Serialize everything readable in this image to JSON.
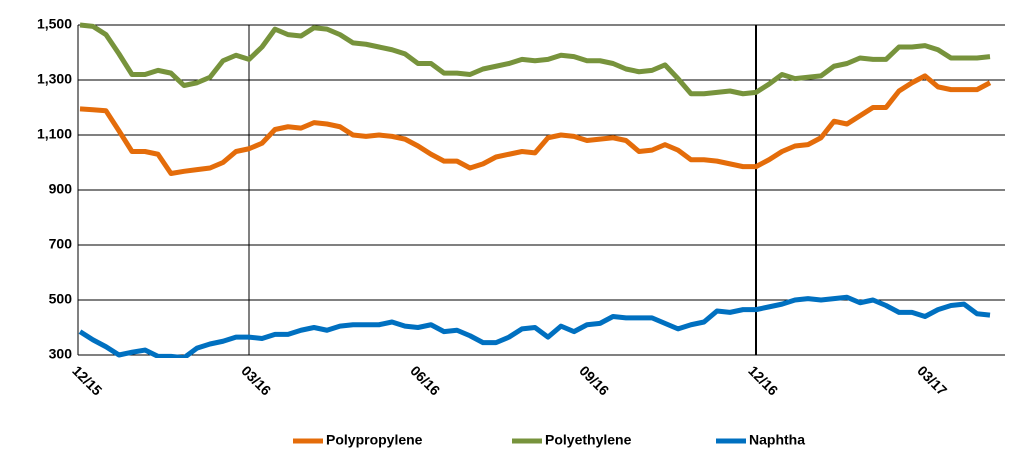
{
  "chart_data": {
    "type": "line",
    "categories": [
      "12/15",
      null,
      null,
      null,
      null,
      null,
      null,
      null,
      null,
      null,
      null,
      null,
      null,
      "03/16",
      null,
      null,
      null,
      null,
      null,
      null,
      null,
      null,
      null,
      null,
      null,
      null,
      "06/16",
      null,
      null,
      null,
      null,
      null,
      null,
      null,
      null,
      null,
      null,
      null,
      null,
      "09/16",
      null,
      null,
      null,
      null,
      null,
      null,
      null,
      null,
      null,
      null,
      null,
      null,
      "12/16",
      null,
      null,
      null,
      null,
      null,
      null,
      null,
      null,
      null,
      null,
      null,
      null,
      "03/17",
      null,
      null,
      null,
      null,
      null
    ],
    "series": [
      {
        "name": "Polypropylene",
        "color": "#e46c0a",
        "values": [
          1195,
          1192,
          1188,
          1115,
          1040,
          1040,
          1030,
          960,
          968,
          974,
          980,
          1000,
          1040,
          1050,
          1070,
          1120,
          1130,
          1125,
          1145,
          1140,
          1130,
          1100,
          1095,
          1100,
          1095,
          1085,
          1060,
          1030,
          1005,
          1005,
          980,
          995,
          1020,
          1030,
          1040,
          1035,
          1090,
          1100,
          1095,
          1080,
          1085,
          1090,
          1080,
          1040,
          1045,
          1065,
          1045,
          1010,
          1010,
          1005,
          995,
          985,
          985,
          1010,
          1040,
          1060,
          1065,
          1090,
          1150,
          1140,
          1170,
          1200,
          1200,
          1260,
          1290,
          1315,
          1275,
          1265,
          1265,
          1265,
          1290
        ]
      },
      {
        "name": "Polyethylene",
        "color": "#77933c",
        "values": [
          1500,
          1495,
          1465,
          1395,
          1320,
          1320,
          1335,
          1325,
          1280,
          1290,
          1310,
          1370,
          1390,
          1375,
          1420,
          1485,
          1465,
          1460,
          1490,
          1485,
          1465,
          1435,
          1430,
          1420,
          1410,
          1395,
          1360,
          1360,
          1325,
          1325,
          1320,
          1340,
          1350,
          1360,
          1375,
          1370,
          1375,
          1390,
          1385,
          1370,
          1370,
          1360,
          1340,
          1330,
          1335,
          1355,
          1305,
          1250,
          1250,
          1255,
          1260,
          1250,
          1255,
          1285,
          1320,
          1305,
          1310,
          1315,
          1350,
          1360,
          1380,
          1375,
          1375,
          1420,
          1420,
          1425,
          1410,
          1380,
          1380,
          1380,
          1385
        ]
      },
      {
        "name": "Naphtha",
        "color": "#0070c0",
        "values": [
          385,
          355,
          330,
          300,
          310,
          318,
          295,
          295,
          290,
          325,
          340,
          350,
          365,
          365,
          360,
          375,
          375,
          390,
          400,
          390,
          405,
          410,
          410,
          410,
          420,
          405,
          400,
          410,
          385,
          390,
          370,
          345,
          345,
          365,
          395,
          400,
          365,
          405,
          385,
          410,
          415,
          440,
          435,
          435,
          435,
          415,
          395,
          410,
          420,
          460,
          455,
          465,
          465,
          475,
          485,
          500,
          505,
          500,
          505,
          510,
          490,
          500,
          480,
          455,
          455,
          440,
          465,
          480,
          485,
          450,
          445
        ]
      }
    ],
    "ylim": [
      300,
      1500
    ],
    "yticks": [
      300,
      500,
      700,
      900,
      {
        "value": 1100,
        "label": "1,100"
      },
      {
        "value": 1300,
        "label": "1,300"
      },
      {
        "value": 1500,
        "label": "1,500"
      }
    ],
    "grid": true,
    "vertical_lines": [
      "03/16",
      "12/16"
    ],
    "legend": "bottom"
  }
}
